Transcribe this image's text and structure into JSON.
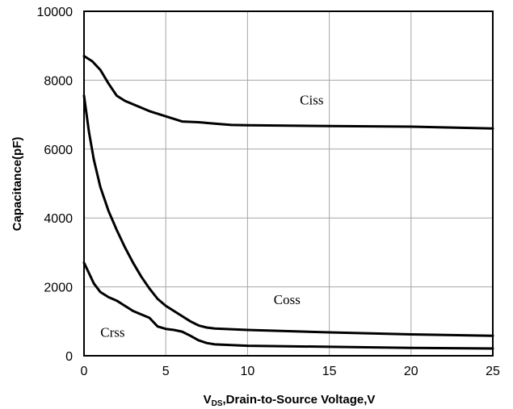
{
  "chart_data": {
    "type": "line",
    "title": "",
    "xlabel": "V",
    "xlabel_sub": "DS",
    "xlabel_rest": ",Drain-to-Source Voltage,V",
    "ylabel": "Capacitance(pF)",
    "xlim": [
      0,
      25
    ],
    "ylim": [
      0,
      10000
    ],
    "xticks": [
      0,
      5,
      10,
      15,
      20,
      25
    ],
    "yticks": [
      0,
      2000,
      4000,
      6000,
      8000,
      10000
    ],
    "grid": true,
    "legend": "none",
    "series": [
      {
        "name": "Ciss",
        "label_at": [
          13.2,
          7300
        ],
        "points": [
          [
            0,
            8700
          ],
          [
            0.5,
            8550
          ],
          [
            1,
            8300
          ],
          [
            1.5,
            7900
          ],
          [
            2,
            7550
          ],
          [
            2.5,
            7400
          ],
          [
            3,
            7300
          ],
          [
            4,
            7100
          ],
          [
            5,
            6950
          ],
          [
            6,
            6800
          ],
          [
            7,
            6780
          ],
          [
            8,
            6740
          ],
          [
            9,
            6700
          ],
          [
            10,
            6690
          ],
          [
            15,
            6670
          ],
          [
            20,
            6650
          ],
          [
            25,
            6600
          ]
        ]
      },
      {
        "name": "Coss",
        "label_at": [
          11.6,
          1500
        ],
        "points": [
          [
            0,
            7550
          ],
          [
            0.3,
            6500
          ],
          [
            0.6,
            5700
          ],
          [
            1,
            4900
          ],
          [
            1.5,
            4200
          ],
          [
            2,
            3650
          ],
          [
            2.5,
            3150
          ],
          [
            3,
            2700
          ],
          [
            3.5,
            2300
          ],
          [
            4,
            1950
          ],
          [
            4.5,
            1650
          ],
          [
            5,
            1450
          ],
          [
            5.5,
            1300
          ],
          [
            6,
            1150
          ],
          [
            6.5,
            1000
          ],
          [
            7,
            880
          ],
          [
            7.5,
            820
          ],
          [
            8,
            790
          ],
          [
            10,
            750
          ],
          [
            15,
            680
          ],
          [
            20,
            620
          ],
          [
            25,
            580
          ]
        ]
      },
      {
        "name": "Crss",
        "label_at": [
          1.0,
          550
        ],
        "points": [
          [
            0,
            2700
          ],
          [
            0.3,
            2400
          ],
          [
            0.6,
            2100
          ],
          [
            1,
            1850
          ],
          [
            1.5,
            1700
          ],
          [
            2,
            1600
          ],
          [
            2.5,
            1450
          ],
          [
            3,
            1300
          ],
          [
            3.5,
            1200
          ],
          [
            4,
            1100
          ],
          [
            4.5,
            850
          ],
          [
            5,
            780
          ],
          [
            5.5,
            750
          ],
          [
            6,
            700
          ],
          [
            6.5,
            580
          ],
          [
            7,
            450
          ],
          [
            7.5,
            370
          ],
          [
            8,
            330
          ],
          [
            10,
            290
          ],
          [
            15,
            260
          ],
          [
            20,
            230
          ],
          [
            25,
            210
          ]
        ]
      }
    ]
  }
}
